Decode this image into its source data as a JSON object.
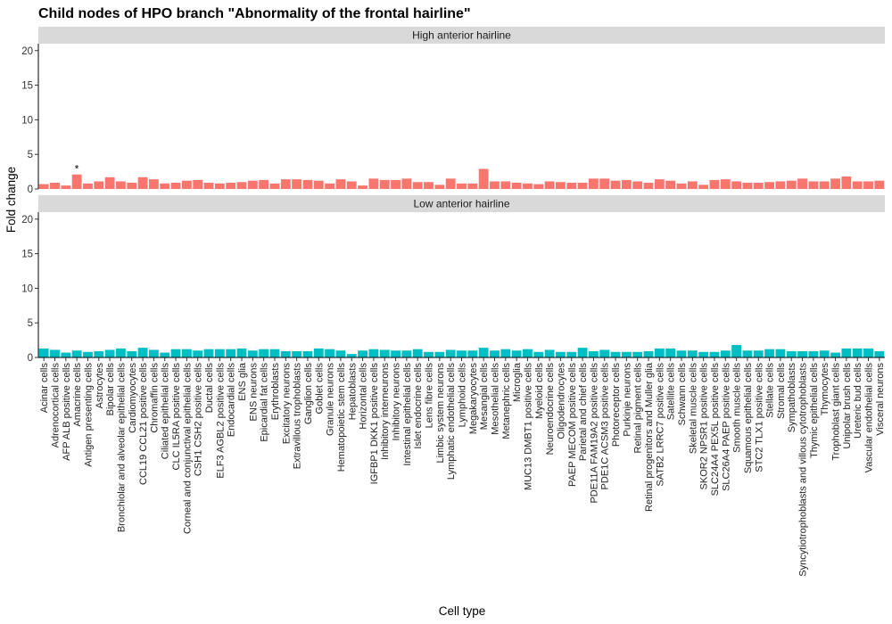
{
  "chart_data": {
    "type": "bar",
    "title": "Child nodes of HPO branch \"Abnormality of the frontal hairline\"",
    "xlabel": "Cell type",
    "ylabel": "Fold change",
    "ylim": [
      0,
      21
    ],
    "yticks": [
      0,
      5,
      10,
      15,
      20
    ],
    "grid": false,
    "categories": [
      "Acinar cells",
      "Adrenocortical cells",
      "AFP ALB positive cells",
      "Amacrine cells",
      "Antigen presenting cells",
      "Astrocytes",
      "Bipolar cells",
      "Bronchiolar and alveolar epithelial cells",
      "Cardiomyocytes",
      "CCL19 CCL21 positive cells",
      "Chromaffin cells",
      "Ciliated epithelial cells",
      "CLC IL5RA positive cells",
      "Corneal and conjunctival epithelial cells",
      "CSH1 CSH2 positive cells",
      "Ductal cells",
      "ELF3 AGBL2 positive cells",
      "Endocardial cells",
      "ENS glia",
      "ENS neurons",
      "Epicardial fat cells",
      "Erythroblasts",
      "Excitatory neurons",
      "Extravillous trophoblasts",
      "Ganglion cells",
      "Goblet cells",
      "Granule neurons",
      "Hematopoietic stem cells",
      "Hepatoblasts",
      "Horizontal cells",
      "IGFBP1 DKK1 positive cells",
      "Inhibitory interneurons",
      "Inhibitory neurons",
      "Intestinal epithelial cells",
      "Islet endocrine cells",
      "Lens fibre cells",
      "Limbic system neurons",
      "Lymphatic endothelial cells",
      "Lymphoid cells",
      "Megakaryocytes",
      "Mesangial cells",
      "Mesothelial cells",
      "Metanephric cells",
      "Microglia",
      "MUC13 DMBT1 positive cells",
      "Myeloid cells",
      "Neuroendocrine cells",
      "Oligodendrocytes",
      "PAEP MECOM positive cells",
      "Parietal and chief cells",
      "PDE11A FAM19A2 positive cells",
      "PDE1C ACSM3 positive cells",
      "Photoreceptor cells",
      "Purkinje neurons",
      "Retinal pigment cells",
      "Retinal progenitors and Muller glia",
      "SATB2 LRRC7 positive cells",
      "Satellite cells",
      "Schwann cells",
      "Skeletal muscle cells",
      "SKOR2 NPSR1 positive cells",
      "SLC24A4 PEX5L positive cells",
      "SLC26A4 PAEP positive cells",
      "Smooth muscle cells",
      "Squamous epithelial cells",
      "STC2 TLX1 positive cells",
      "Stellate cells",
      "Stromal cells",
      "Sympathoblasts",
      "Syncytiotrophoblasts and villous cytotrophoblasts",
      "Thymic epithelial cells",
      "Thymocytes",
      "Trophoblast giant cells",
      "Unipolar brush cells",
      "Ureteric bud cells",
      "Vascular endothelial cells",
      "Visceral neurons"
    ],
    "series": [
      {
        "name": "High anterior hairline",
        "color": "#F8766D",
        "values": [
          0.7,
          0.9,
          0.5,
          2.1,
          0.8,
          1.1,
          1.7,
          1.1,
          0.9,
          1.7,
          1.4,
          0.8,
          0.9,
          1.2,
          1.3,
          0.9,
          0.8,
          0.9,
          1.0,
          1.2,
          1.3,
          0.8,
          1.4,
          1.4,
          1.3,
          1.2,
          0.8,
          1.4,
          1.1,
          0.5,
          1.5,
          1.3,
          1.3,
          1.5,
          1.0,
          1.0,
          0.6,
          1.5,
          0.8,
          0.8,
          2.9,
          1.1,
          1.1,
          0.9,
          0.8,
          0.7,
          1.1,
          1.0,
          0.9,
          0.9,
          1.5,
          1.5,
          1.2,
          1.3,
          1.1,
          0.9,
          1.4,
          1.2,
          0.8,
          1.1,
          0.6,
          1.3,
          1.4,
          1.1,
          0.9,
          0.9,
          1.0,
          1.1,
          1.2,
          1.5,
          1.1,
          1.1,
          1.5,
          1.8,
          1.1,
          1.1,
          1.2
        ],
        "annotations": [
          {
            "category": "Amacrine cells",
            "label": "*"
          }
        ]
      },
      {
        "name": "Low anterior hairline",
        "color": "#00BFC4",
        "values": [
          1.3,
          1.1,
          0.7,
          1.0,
          0.8,
          0.9,
          1.1,
          1.3,
          0.9,
          1.4,
          1.1,
          0.7,
          1.2,
          1.2,
          1.0,
          1.2,
          1.2,
          1.2,
          1.3,
          1.0,
          1.2,
          1.2,
          0.9,
          0.9,
          0.9,
          1.3,
          1.2,
          1.0,
          0.5,
          1.0,
          1.2,
          1.1,
          1.0,
          1.0,
          1.2,
          0.8,
          0.8,
          1.1,
          1.0,
          1.0,
          1.4,
          1.0,
          1.2,
          1.0,
          1.2,
          0.8,
          1.1,
          0.8,
          0.8,
          1.4,
          0.9,
          1.1,
          0.8,
          0.8,
          0.8,
          0.9,
          1.3,
          1.3,
          1.0,
          1.0,
          0.8,
          0.8,
          1.0,
          1.8,
          1.0,
          1.0,
          1.2,
          1.2,
          0.9,
          0.9,
          0.9,
          1.0,
          0.7,
          1.3,
          1.3,
          1.3,
          0.9
        ]
      }
    ]
  }
}
